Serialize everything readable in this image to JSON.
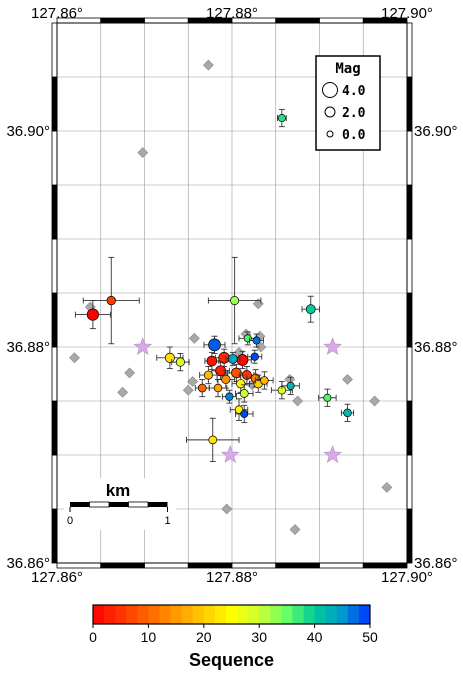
{
  "chart_data": {
    "type": "scatter",
    "xlim": [
      127.86,
      127.9
    ],
    "ylim": [
      36.86,
      36.91
    ],
    "grid": true,
    "x_ticks": [
      {
        "value": 127.86,
        "label": "127.86°"
      },
      {
        "value": 127.88,
        "label": "127.88°"
      },
      {
        "value": 127.9,
        "label": "127.90°"
      }
    ],
    "y_ticks": [
      {
        "value": 36.86,
        "label": "36.86°"
      },
      {
        "value": 36.88,
        "label": "36.88°"
      },
      {
        "value": 36.9,
        "label": "36.90°"
      }
    ],
    "legend": {
      "title": "Mag",
      "placement": "top-right",
      "entries": [
        {
          "mag": 4.0,
          "label": "4.0"
        },
        {
          "mag": 2.0,
          "label": "2.0"
        },
        {
          "mag": 0.0,
          "label": "0.0"
        }
      ]
    },
    "scale_bar": {
      "title": "km",
      "tick_labels": [
        "0",
        "1"
      ],
      "length_km": 1
    },
    "colorbar": {
      "label": "Sequence",
      "range": [
        0,
        50
      ],
      "tick_labels": [
        "0",
        "10",
        "20",
        "30",
        "40",
        "50"
      ],
      "colors": [
        "#ff0000",
        "#ff3300",
        "#ff6600",
        "#ff9900",
        "#ffcc00",
        "#ffff00",
        "#ccff33",
        "#66ff66",
        "#00cc99",
        "#0099cc",
        "#0033ff"
      ]
    },
    "stations": [
      {
        "lon": 127.8698,
        "lat": 36.88
      },
      {
        "lon": 127.8798,
        "lat": 36.87
      },
      {
        "lon": 127.8915,
        "lat": 36.88
      },
      {
        "lon": 127.8915,
        "lat": 36.87
      }
    ],
    "other_events": [
      {
        "lon": 127.8773,
        "lat": 36.9061
      },
      {
        "lon": 127.8698,
        "lat": 36.898
      },
      {
        "lon": 127.862,
        "lat": 36.879
      },
      {
        "lon": 127.8675,
        "lat": 36.8758
      },
      {
        "lon": 127.8683,
        "lat": 36.8776
      },
      {
        "lon": 127.8638,
        "lat": 36.8837
      },
      {
        "lon": 127.8757,
        "lat": 36.8808
      },
      {
        "lon": 127.8755,
        "lat": 36.8768
      },
      {
        "lon": 127.875,
        "lat": 36.876
      },
      {
        "lon": 127.8816,
        "lat": 36.8812
      },
      {
        "lon": 127.883,
        "lat": 36.884
      },
      {
        "lon": 127.8832,
        "lat": 36.881
      },
      {
        "lon": 127.8833,
        "lat": 36.88
      },
      {
        "lon": 127.8866,
        "lat": 36.877
      },
      {
        "lon": 127.8875,
        "lat": 36.875
      },
      {
        "lon": 127.8932,
        "lat": 36.877
      },
      {
        "lon": 127.8963,
        "lat": 36.875
      },
      {
        "lon": 127.8977,
        "lat": 36.867
      },
      {
        "lon": 127.8872,
        "lat": 36.8631
      },
      {
        "lon": 127.8794,
        "lat": 36.865
      },
      {
        "lon": 127.8808,
        "lat": 36.8795
      },
      {
        "lon": 127.879,
        "lat": 36.8775
      },
      {
        "lon": 127.8823,
        "lat": 36.8765
      }
    ],
    "events": [
      {
        "lon": 127.8857,
        "lat": 36.9012,
        "mag": 0.8,
        "seq": 38,
        "xerr": 0.0005,
        "yerr": 0.0008
      },
      {
        "lon": 127.8662,
        "lat": 36.8843,
        "mag": 1.3,
        "seq": 6,
        "xerr": 0.0032,
        "yerr": 0.004
      },
      {
        "lon": 127.8641,
        "lat": 36.883,
        "mag": 2.4,
        "seq": 0,
        "xerr": 0.002,
        "yerr": 0.0013
      },
      {
        "lon": 127.8803,
        "lat": 36.8843,
        "mag": 1.2,
        "seq": 32,
        "xerr": 0.003,
        "yerr": 0.004
      },
      {
        "lon": 127.889,
        "lat": 36.8835,
        "mag": 1.5,
        "seq": 40,
        "xerr": 0.001,
        "yerr": 0.0012
      },
      {
        "lon": 127.8729,
        "lat": 36.879,
        "mag": 1.6,
        "seq": 22,
        "xerr": 0.0015,
        "yerr": 0.001
      },
      {
        "lon": 127.8741,
        "lat": 36.8786,
        "mag": 1.2,
        "seq": 28,
        "xerr": 0.001,
        "yerr": 0.0008
      },
      {
        "lon": 127.878,
        "lat": 36.8802,
        "mag": 2.6,
        "seq": 48,
        "xerr": 0.0012,
        "yerr": 0.0008
      },
      {
        "lon": 127.8791,
        "lat": 36.879,
        "mag": 2.2,
        "seq": 4,
        "xerr": 0.001,
        "yerr": 0.0008
      },
      {
        "lon": 127.8777,
        "lat": 36.8787,
        "mag": 1.8,
        "seq": 2,
        "xerr": 0.0008,
        "yerr": 0.0008
      },
      {
        "lon": 127.8801,
        "lat": 36.8789,
        "mag": 1.5,
        "seq": 44,
        "xerr": 0.0008,
        "yerr": 0.0006
      },
      {
        "lon": 127.8812,
        "lat": 36.8788,
        "mag": 2.2,
        "seq": 1,
        "xerr": 0.001,
        "yerr": 0.0008
      },
      {
        "lon": 127.8818,
        "lat": 36.8808,
        "mag": 0.8,
        "seq": 36,
        "xerr": 0.001,
        "yerr": 0.0006
      },
      {
        "lon": 127.8828,
        "lat": 36.8806,
        "mag": 0.8,
        "seq": 47,
        "xerr": 0.0008,
        "yerr": 0.0006
      },
      {
        "lon": 127.8826,
        "lat": 36.8791,
        "mag": 0.9,
        "seq": 49,
        "xerr": 0.0008,
        "yerr": 0.0006
      },
      {
        "lon": 127.8787,
        "lat": 36.8778,
        "mag": 1.9,
        "seq": 3,
        "xerr": 0.001,
        "yerr": 0.0008
      },
      {
        "lon": 127.8805,
        "lat": 36.8776,
        "mag": 1.8,
        "seq": 8,
        "xerr": 0.001,
        "yerr": 0.0008
      },
      {
        "lon": 127.8817,
        "lat": 36.8774,
        "mag": 1.5,
        "seq": 5,
        "xerr": 0.0008,
        "yerr": 0.0008
      },
      {
        "lon": 127.8827,
        "lat": 36.8771,
        "mag": 1.4,
        "seq": 12,
        "xerr": 0.001,
        "yerr": 0.0008
      },
      {
        "lon": 127.8793,
        "lat": 36.877,
        "mag": 1.3,
        "seq": 14,
        "xerr": 0.001,
        "yerr": 0.0008
      },
      {
        "lon": 127.881,
        "lat": 36.8766,
        "mag": 1.3,
        "seq": 24,
        "xerr": 0.001,
        "yerr": 0.0008
      },
      {
        "lon": 127.883,
        "lat": 36.8766,
        "mag": 1.3,
        "seq": 20,
        "xerr": 0.001,
        "yerr": 0.0008
      },
      {
        "lon": 127.8773,
        "lat": 36.8774,
        "mag": 1.2,
        "seq": 18,
        "xerr": 0.001,
        "yerr": 0.0008
      },
      {
        "lon": 127.8766,
        "lat": 36.8762,
        "mag": 1.1,
        "seq": 10,
        "xerr": 0.0008,
        "yerr": 0.0008
      },
      {
        "lon": 127.8784,
        "lat": 36.8762,
        "mag": 1.0,
        "seq": 16,
        "xerr": 0.001,
        "yerr": 0.0008
      },
      {
        "lon": 127.8837,
        "lat": 36.8769,
        "mag": 1.0,
        "seq": 18,
        "xerr": 0.001,
        "yerr": 0.0008
      },
      {
        "lon": 127.8814,
        "lat": 36.8757,
        "mag": 1.1,
        "seq": 30,
        "xerr": 0.001,
        "yerr": 0.0008
      },
      {
        "lon": 127.8797,
        "lat": 36.8754,
        "mag": 0.9,
        "seq": 46,
        "xerr": 0.0008,
        "yerr": 0.0006
      },
      {
        "lon": 127.8808,
        "lat": 36.8742,
        "mag": 1.0,
        "seq": 24,
        "xerr": 0.001,
        "yerr": 0.001
      },
      {
        "lon": 127.8814,
        "lat": 36.8738,
        "mag": 0.8,
        "seq": 49,
        "xerr": 0.001,
        "yerr": 0.0008
      },
      {
        "lon": 127.8778,
        "lat": 36.8714,
        "mag": 1.1,
        "seq": 22,
        "xerr": 0.003,
        "yerr": 0.002
      },
      {
        "lon": 127.8857,
        "lat": 36.876,
        "mag": 1.0,
        "seq": 28,
        "xerr": 0.0012,
        "yerr": 0.0008
      },
      {
        "lon": 127.8867,
        "lat": 36.8764,
        "mag": 0.8,
        "seq": 42,
        "xerr": 0.001,
        "yerr": 0.0008
      },
      {
        "lon": 127.8909,
        "lat": 36.8753,
        "mag": 0.8,
        "seq": 36,
        "xerr": 0.001,
        "yerr": 0.0008
      },
      {
        "lon": 127.8932,
        "lat": 36.8739,
        "mag": 1.0,
        "seq": 42,
        "xerr": 0.0007,
        "yerr": 0.0008
      }
    ]
  }
}
